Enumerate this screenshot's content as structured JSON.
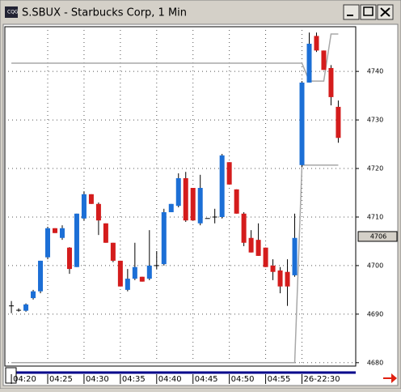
{
  "chart_data": {
    "type": "candlestick",
    "title": "S.SBUX - Starbucks Corp, 1 Min",
    "open": [
      4691.7,
      4690.8,
      4690.7,
      4693.3,
      4694.7,
      4701.7,
      4707.7,
      4705.7,
      4703.7,
      4699.7,
      4709.7,
      4714.7,
      4712.7,
      4708.7,
      4704.7,
      4701,
      4695,
      4697.3,
      4697.7,
      4697.3,
      4700,
      4700.3,
      4711,
      4712.3,
      4718,
      4716,
      4708.7,
      4709.7,
      4710,
      4710,
      4721.3,
      4715.7,
      4710.7,
      4705.7,
      4705.3,
      4703.7,
      4700,
      4699,
      4698.7,
      4698,
      4720.7,
      4737.7,
      4747.3,
      4744.3,
      4740.7,
      4732.7
    ],
    "high": [
      4692.7,
      4691.2,
      4692.2,
      4695,
      4701,
      4708,
      4707.7,
      4708.3,
      4703.8,
      4710.7,
      4715.3,
      4714.7,
      4713,
      4708.7,
      4704.7,
      4701,
      4699.3,
      4704.7,
      4697.7,
      4707.3,
      4703,
      4711.7,
      4712.7,
      4719,
      4719.3,
      4716,
      4718.7,
      4709.7,
      4711.7,
      4723,
      4721.3,
      4715.7,
      4711,
      4707.3,
      4708.7,
      4703.7,
      4701.3,
      4699.7,
      4701.3,
      4710.7,
      4738,
      4748,
      4748,
      4744.3,
      4741.3,
      4734
    ],
    "low": [
      4690.2,
      4690.5,
      4690.5,
      4693,
      4694.3,
      4701.3,
      4706.7,
      4705.3,
      4698.3,
      4699.7,
      4709.3,
      4712.7,
      4706.3,
      4704.7,
      4700.7,
      4695.7,
      4694.7,
      4697,
      4696.7,
      4697,
      4699.3,
      4700,
      4711,
      4712,
      4709,
      4709.3,
      4708.3,
      4709.7,
      4708.7,
      4709.7,
      4716.7,
      4710.7,
      4704,
      4702.7,
      4702,
      4699.7,
      4697,
      4694.3,
      4691.7,
      4697.7,
      4720.3,
      4737.7,
      4744,
      4740.3,
      4733,
      4725.3
    ],
    "close": [
      4691.7,
      4690.8,
      4692,
      4694.7,
      4701,
      4707.7,
      4706.7,
      4707.7,
      4699.3,
      4710.7,
      4714.7,
      4712.7,
      4709.3,
      4704.7,
      4701,
      4695.7,
      4697.3,
      4699.7,
      4696.7,
      4700,
      4700,
      4711,
      4712.7,
      4718,
      4709.3,
      4709.3,
      4716,
      4709.7,
      4710,
      4722.7,
      4716.7,
      4710.7,
      4704.7,
      4702.7,
      4702,
      4699.7,
      4698.7,
      4695.7,
      4695.7,
      4705.7,
      4737.7,
      4745.7,
      4744.3,
      4740.3,
      4734.7,
      4726.3
    ],
    "up_color": "#1c6fd6",
    "down_color": "#d41c1c",
    "lines": [
      {
        "x": [
          0,
          40,
          41,
          43,
          44,
          45
        ],
        "values": [
          4741.7,
          4741.7,
          4738,
          4738,
          4747.7,
          4747.7
        ],
        "color": "#a8a8a8"
      },
      {
        "x": [
          0,
          39,
          40,
          45
        ],
        "values": [
          4680,
          4680,
          4720.7,
          4720.7
        ],
        "color": "#a8a8a8"
      }
    ],
    "last_price": 4706,
    "xlim": [
      -0.9,
      47.4
    ],
    "xticks": [
      {
        "value": 0,
        "label": "04:20"
      },
      {
        "value": 5,
        "label": "04:25"
      },
      {
        "value": 10,
        "label": "04:30"
      },
      {
        "value": 15,
        "label": "04:35"
      },
      {
        "value": 20,
        "label": "04:40"
      },
      {
        "value": 25,
        "label": "04:45"
      },
      {
        "value": 30,
        "label": "04:50"
      },
      {
        "value": 35,
        "label": "04:55"
      },
      {
        "value": 40,
        "label": "26-22:30"
      }
    ],
    "ylim": [
      4679.3,
      4749.2
    ],
    "yticks": [
      4680,
      4690,
      4700,
      4710,
      4720,
      4730,
      4740
    ],
    "grid": true
  }
}
